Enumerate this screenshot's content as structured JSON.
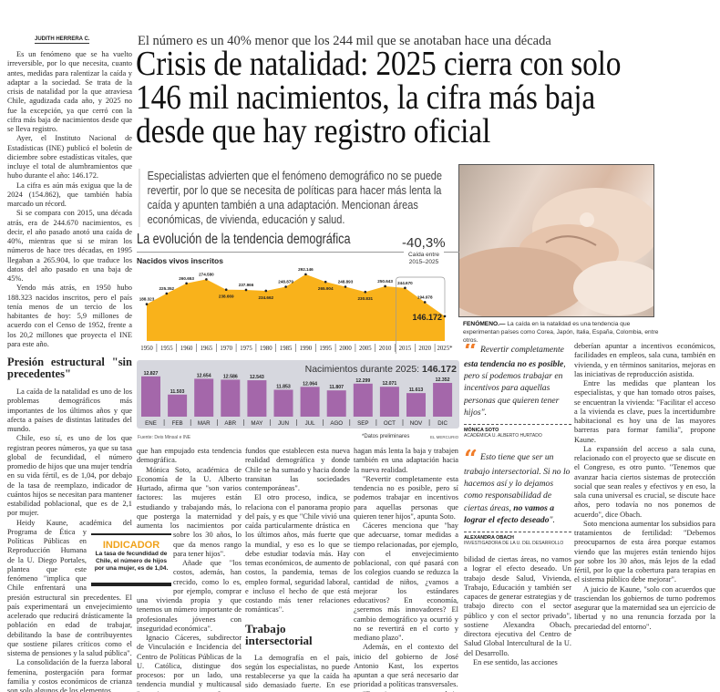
{
  "byline": "JUDITH HERRERA C.",
  "kicker": "El número es un 40% menor que los 244 mil que se anotaban hace una década",
  "title": "Crisis de natalidad: 2025 cierra con solo 146 mil nacimientos, la cifra más baja desde que hay registro oficial",
  "deck": "Especialistas advierten que el fenómeno demográfico no se puede revertir, por lo que se necesita de políticas para hacer más lenta la caída y apunten también a una adaptación. Mencionan áreas económicas, de vivienda, educación y salud.",
  "photo": {
    "caption_label": "FENÓMENO.—",
    "caption": " La caída en la natalidad es una tendencia que experimentan países como Corea, Japón, Italia, España, Colombia, entre otros."
  },
  "chart_data": [
    {
      "type": "area",
      "title": "La evolución de la tendencia demográfica",
      "subtitle": "Nacidos vivos inscritos",
      "annotation": {
        "value": "-40,3%",
        "label": "Caída entre 2015–2025"
      },
      "x": [
        "1950",
        "1955",
        "1960",
        "1965",
        "1970",
        "1975",
        "1980",
        "1985",
        "1990",
        "1995",
        "2000",
        "2005",
        "2010",
        "2015",
        "2020",
        "2025*"
      ],
      "values": [
        188323,
        225352,
        260653,
        274580,
        238669,
        237966,
        234662,
        248879,
        292146,
        265904,
        248893,
        230831,
        250643,
        244670,
        194978,
        146172
      ],
      "labels": [
        "188.323",
        "225.352",
        "260.653",
        "274.580",
        "238.669",
        "237.966",
        "234.662",
        "248.879",
        "292.146",
        "265.904",
        "248.893",
        "230.831",
        "250.643",
        "244.670",
        "194.978",
        "146.172"
      ],
      "color": "#f9b21b"
    },
    {
      "type": "bar",
      "title": "Nacimientos durante 2025:",
      "title_value": "146.172",
      "categories": [
        "ENE",
        "FEB",
        "MAR",
        "ABR",
        "MAY",
        "JUN",
        "JUL",
        "AGO",
        "SEP",
        "OCT",
        "NOV",
        "DIC"
      ],
      "values": [
        12827,
        11503,
        12654,
        12586,
        12543,
        11853,
        12064,
        11807,
        12299,
        12071,
        11613,
        12352
      ],
      "labels": [
        "12.827",
        "11.503",
        "12.654",
        "12.586",
        "12.543",
        "11.853",
        "12.064",
        "11.807",
        "12.299",
        "12.071",
        "11.613",
        "12.352"
      ],
      "color": "#a467aa",
      "panel_color": "#d6d7de"
    }
  ],
  "chart_source": "Fuente: Deis Minsal e INE",
  "chart_note": "*Datos preliminares",
  "chart_brand": "EL MERCURIO",
  "indicator": {
    "heading": "INDICADOR",
    "text": "La tasa de fecundidad de Chile, el número de hijos por una mujer, es de 1,04."
  },
  "quotes": [
    {
      "pre": "Revertir completamente ",
      "bold": "esta tendencia no es posible",
      "post": ", pero sí podemos trabajar en incentivos para aquellas personas que quieren tener hijos\".",
      "name": "MÓNICA SOTO",
      "role": "ACADÉMICA U. ALBERTO HURTADO"
    },
    {
      "pre": "Esto tiene que ser un trabajo intersectorial. Si no lo hacemos así y lo dejamos como responsabilidad de ciertas áreas, ",
      "bold": "no vamos a lograr el efecto deseado",
      "post": "\".",
      "name": "ALEXANDRA OBACH",
      "role": "INVESTIGADORA DE LA U. DEL DESARROLLO"
    }
  ],
  "article": {
    "col1": [
      "Es un fenómeno que se ha vuelto irreversible, por lo que necesita, cuanto antes, medidas para ralentizar la caída y adaptar a la sociedad. Se trata de la crisis de natalidad por la que atraviesa Chile, agudizada cada año, y 2025 no fue la excepción, ya que cerró con la cifra más baja de nacimientos desde que se lleva registro.",
      "Ayer, el Instituto Nacional de Estadísticas (INE) publicó el boletín de diciembre sobre estadísticas vitales, que incluye el total de alumbramientos que hubo durante el año: 146.172.",
      "La cifra es aún más exigua que la de 2024 (154.862), que también había marcado un récord.",
      "Si se compara con 2015, una década atrás, era de 244.670 nacimientos, es decir, el año pasado anotó una caída de 40%, mientras que si se miran los números de hace tres décadas, en 1995 llegaban a 265.904, lo que traduce los datos del año pasado en una baja de 45%.",
      "Yendo más atrás, en 1950 hubo 188.323 nacidos inscritos, pero el país tenía menos de un tercio de los habitantes de hoy: 5,9 millones de acuerdo con el Censo de 1952, frente a los 20,2 millones que proyecta el INE para este año."
    ],
    "heading1": "Presión estructural \"sin precedentes\"",
    "col1b": [
      "La caída de la natalidad es uno de los problemas demográficos más importantes de los últimos años y que afecta a países de distintas latitudes del mundo.",
      "Chile, eso sí, es uno de los que registran peores números, ya que su tasa global de fecundidad, el número promedio de hijos que una mujer tendría en su vida fértil, es de 1,04, por debajo de la tasa de reemplazo, indicador de cuántos hijos se necesitan para mantener estabilidad poblacional, que es de 2,1 por mujer.",
      "Heidy Kaune, académica del Programa de Ética y Políticas Públicas en Reproducción Humana de la U. Diego Portales, plantea que este fenómeno \"implica que Chile enfrentará una presión estructural sin precedentes. El país experimentará un envejecimiento acelerado que reducirá drásticamente la población en edad de trabajar, debilitando la base de contribuyentes que sostiene pilares críticos como el sistema de pensiones y la salud pública\".",
      "La consolidación de la fuerza laboral femenina, postergación para formar familia y costos económicos de crianza son solo algunos de los elementos"
    ],
    "col2": [
      "que han empujado esta tendencia demográfica.",
      "Mónica Soto, académica de Economía de la U. Alberto Hurtado, afirma que \"son varios factores: las mujeres están estudiando y trabajando más, lo que posterga la maternidad y aumenta los nacimientos por sobre los 30 años, lo que da menos rango para tener hijos\".",
      "Añade que \"los costos, además, han crecido, como lo es, por ejemplo, comprar una vivienda propia y que tenemos un número importante de profesionales jóvenes con inseguridad económica\".",
      "Ignacio Cáceres, subdirector de Vinculación e Incidencia del Centro de Políticas Públicas de la U. Católica, distingue dos procesos: por un lado, una tendencia mundial y multicausal \"que tiene que ver con factores pro-"
    ],
    "col3": [
      "fundos que establecen esta nueva realidad demográfica y donde Chile se ha sumado y hacia donde transitan las sociedades contemporáneas\".",
      "El otro proceso, indica, se relaciona con el panorama propio del país, y es que \"Chile vivió una caída particularmente drástica en los últimos años, más fuerte que la mundial, y eso es lo que se debe estudiar todavía más. Hay temas económicos, de aumento de costos, la pandemia, temas de empleo formal, seguridad laboral, e incluso el hecho de que está costando más tener relaciones románticas\"."
    ],
    "heading2": "Trabajo intersectorial",
    "col3b": [
      "La demografía en el país, según los especialistas, no puede restablecerse ya que la caída ha sido demasiado fuerte. En ese sentido, apuntan a que más que tratar de volver a cifras de antaño, se deben buscar formas que"
    ],
    "col4": [
      "hagan más lenta la baja y trabajen también en una adaptación hacia la nueva realidad.",
      "\"Revertir completamente esta tendencia no es posible, pero sí podemos trabajar en incentivos para aquellas personas que quieren tener hijos\", apunta Soto.",
      "Cáceres menciona que \"hay que adecuarse, tomar medidas a tiempo relacionadas, por ejemplo, con el envejecimiento poblacional, con qué pasará con los colegios cuando se reduzca la cantidad de niños, ¿vamos a mejorar los estándares educativos? En economía, ¿seremos más innovadores? El cambio demográfico ya ocurrió y no se revertirá en el corto y mediano plazo\".",
      "Además, en el contexto del inicio del gobierno de José Antonio Kast, los expertos apuntan a que será necesario dar prioridad a políticas transversales.",
      "\"Esto tiene que ser un trabajo intersectorial. Si no lo hacemos así y lo dejamos como responsa-"
    ],
    "col5": [
      "bilidad de ciertas áreas, no vamos a lograr el efecto deseado. Un trabajo desde Salud, Vivienda, Trabajo, Educación y también ser capaces de generar estrategias y de trabajo directo con el sector público y con el sector privado\", sostiene Alexandra Obach, directora ejecutiva del Centro de Salud Global Intercultural de la U. del Desarrollo.",
      "En ese sentido, las acciones"
    ],
    "col6": [
      "deberían apuntar a incentivos económicos, facilidades en empleos, sala cuna, también en vivienda, y en términos sanitarios, mejoras en las iniciativas de reproducción asistida.",
      "Entre las medidas que plantean los especialistas, y que han tomado otros países, se encuentran la vivienda: \"Facilitar el acceso a la vivienda es clave, pues la incertidumbre habitacional es hoy una de las mayores barreras para formar familia\", propone Kaune.",
      "La expansión del acceso a sala cuna, relacionado con el proyecto que se discute en el Congreso, es otro punto. \"Tenemos que avanzar hacia ciertos sistemas de protección social que sean reales y efectivos y en eso, la sala cuna universal es crucial, se discute hace años, pero todavía no nos ponemos de acuerdo\", dice Obach.",
      "Soto menciona aumentar los subsidios para tratamientos de fertilidad: \"Debemos preocuparnos de esta área porque estamos viendo que las mujeres están teniendo hijos por sobre los 30 años, más lejos de la edad fértil, por lo que la cobertura para terapias en el sistema público debe mejorar\".",
      "A juicio de Kaune, \"solo con acuerdos que trasciendan los gobiernos de turno podremos asegurar que la maternidad sea un ejercicio de libertad y no una renuncia forzada por la precariedad del entorno\"."
    ]
  }
}
